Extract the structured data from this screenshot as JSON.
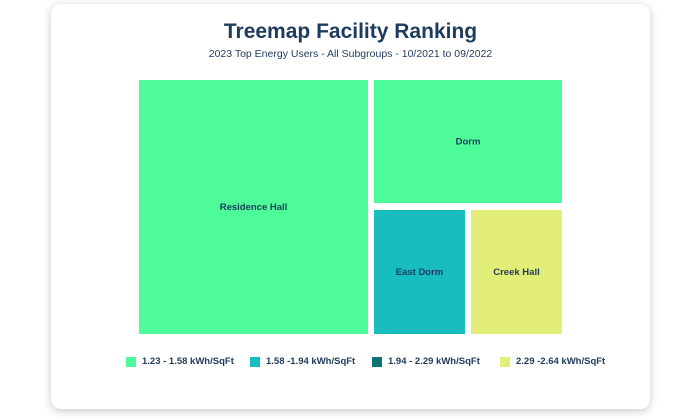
{
  "chart_data": {
    "type": "treemap",
    "title": "Treemap Facility Ranking",
    "subtitle": "2023 Top Energy Users - All Subgroups - 10/2021 to 09/2022",
    "tiles": [
      {
        "name": "Residence Hall",
        "bin": 0
      },
      {
        "name": "Dorm",
        "bin": 0
      },
      {
        "name": "East Dorm",
        "bin": 1
      },
      {
        "name": "Creek Hall",
        "bin": 3
      }
    ],
    "legend": [
      {
        "label": "1.23 - 1.58 kWh/SqFt",
        "color": "#4dfc99"
      },
      {
        "label": "1.58 -1.94 kWh/SqFt",
        "color": "#18bdc0"
      },
      {
        "label": "1.94 - 2.29 kWh/SqFt",
        "color": "#0d7272"
      },
      {
        "label": "2.29 -2.64 kWh/SqFt",
        "color": "#e3ee79"
      }
    ]
  }
}
